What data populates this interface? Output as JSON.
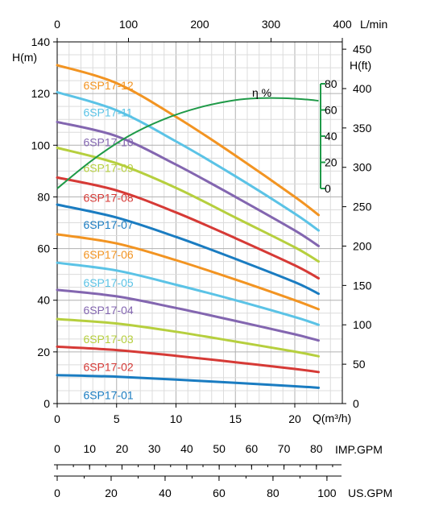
{
  "chart_data": {
    "type": "line",
    "units": {
      "head_m": "H(m)",
      "head_ft": "H(ft)",
      "flow_m3h": "Q(m³/h)",
      "flow_lmin": "L/min",
      "imp_gpm": "IMP.GPM",
      "us_gpm": "US.GPM",
      "efficiency": "η %"
    },
    "axes": {
      "x_m3h": {
        "range": [
          0,
          24
        ],
        "ticks": [
          0,
          5,
          10,
          15,
          20
        ]
      },
      "x_lmin": {
        "range": [
          0,
          400
        ],
        "ticks": [
          0,
          100,
          200,
          300,
          400
        ]
      },
      "y_m": {
        "range": [
          0,
          140
        ],
        "ticks": [
          0,
          20,
          40,
          60,
          80,
          100,
          120,
          140
        ]
      },
      "y_ft": {
        "range": [
          0,
          459.3
        ],
        "ticks": [
          0,
          50,
          100,
          150,
          200,
          250,
          300,
          350,
          400,
          450
        ]
      },
      "efficiency": {
        "range": [
          0,
          80
        ],
        "ticks": [
          0,
          20,
          40,
          60,
          80
        ]
      },
      "imp_gpm": {
        "range": [
          0,
          88
        ],
        "ticks": [
          0,
          10,
          20,
          30,
          40,
          50,
          60,
          70,
          80
        ]
      },
      "us_gpm": {
        "range": [
          0,
          105.7
        ],
        "ticks": [
          0,
          20,
          40,
          60,
          80,
          100
        ]
      }
    },
    "grid": true,
    "series": [
      {
        "name": "6SP17-12",
        "color": "#f29422",
        "x": [
          0,
          5,
          10,
          15,
          20,
          22
        ],
        "y": [
          131,
          124,
          111,
          96,
          80,
          73
        ]
      },
      {
        "name": "6SP17-11",
        "color": "#5bc3e6",
        "x": [
          0,
          5,
          10,
          15,
          20,
          22
        ],
        "y": [
          120.5,
          113.5,
          101.5,
          88,
          73.5,
          67
        ]
      },
      {
        "name": "6SP17-10",
        "color": "#8366b0",
        "x": [
          0,
          5,
          10,
          15,
          20,
          22
        ],
        "y": [
          109,
          103.5,
          92.5,
          80,
          67,
          61
        ]
      },
      {
        "name": "6SP17-09",
        "color": "#b6cf3e",
        "x": [
          0,
          5,
          10,
          15,
          20,
          22
        ],
        "y": [
          99,
          93,
          83.5,
          72,
          60.5,
          55
        ]
      },
      {
        "name": "6SP17-08",
        "color": "#d63a36",
        "x": [
          0,
          5,
          10,
          15,
          20,
          22
        ],
        "y": [
          87.5,
          82.5,
          74,
          64,
          53.5,
          48.5
        ]
      },
      {
        "name": "6SP17-07",
        "color": "#1a7cc1",
        "x": [
          0,
          5,
          10,
          15,
          20,
          22
        ],
        "y": [
          77,
          72,
          64.5,
          56,
          47,
          42.5
        ]
      },
      {
        "name": "6SP17-06",
        "color": "#f29422",
        "x": [
          0,
          5,
          10,
          15,
          20,
          22
        ],
        "y": [
          65.5,
          62,
          55.5,
          48,
          40,
          36.5
        ]
      },
      {
        "name": "6SP17-05",
        "color": "#5bc3e6",
        "x": [
          0,
          5,
          10,
          15,
          20,
          22
        ],
        "y": [
          54.5,
          51.5,
          46,
          40,
          33.5,
          30.5
        ]
      },
      {
        "name": "6SP17-04",
        "color": "#8366b0",
        "x": [
          0,
          5,
          10,
          15,
          20,
          22
        ],
        "y": [
          44,
          41.5,
          37,
          32,
          26.8,
          24.4
        ]
      },
      {
        "name": "6SP17-03",
        "color": "#b6cf3e",
        "x": [
          0,
          5,
          10,
          15,
          20,
          22
        ],
        "y": [
          32.7,
          31,
          27.8,
          24,
          20.1,
          18.3
        ]
      },
      {
        "name": "6SP17-02",
        "color": "#d63a36",
        "x": [
          0,
          5,
          10,
          15,
          20,
          22
        ],
        "y": [
          22,
          20.7,
          18.5,
          16,
          13.4,
          12.2
        ]
      },
      {
        "name": "6SP17-01",
        "color": "#1a7cc1",
        "x": [
          0,
          5,
          10,
          15,
          20,
          22
        ],
        "y": [
          11,
          10.4,
          9.3,
          8,
          6.7,
          6.1
        ]
      }
    ],
    "efficiency_curve": {
      "name": "η %",
      "color": "#1f9a48",
      "x": [
        0,
        3,
        6,
        9,
        12,
        15,
        17,
        19,
        21,
        22
      ],
      "y": [
        0,
        22,
        40,
        53,
        62,
        67.5,
        69,
        69,
        68,
        67
      ]
    }
  }
}
